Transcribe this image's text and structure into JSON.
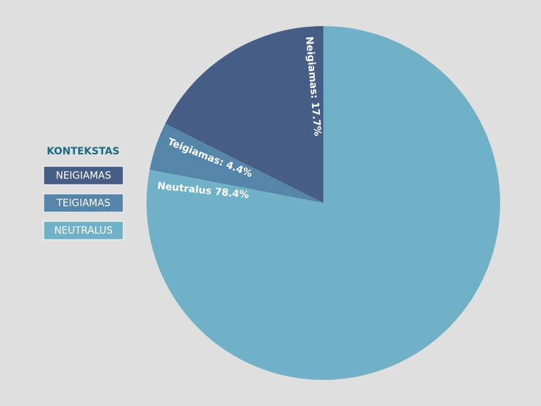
{
  "chart_data": {
    "type": "pie",
    "legend_title": "KONTEKSTAS",
    "categories": [
      "NEIGIAMAS",
      "TEIGIAMAS",
      "NEUTRALUS"
    ],
    "values": [
      17.7,
      4.4,
      78.4
    ],
    "value_labels": [
      "Neigiamas: 17.7%",
      "Teigiamas: 4.4%",
      "Neutralus 78.4%"
    ],
    "colors": [
      "#465d85",
      "#5585a8",
      "#70b1c8"
    ],
    "legend_position": "left"
  }
}
